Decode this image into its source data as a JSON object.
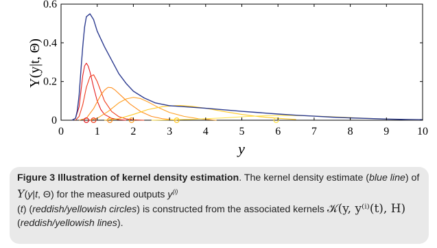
{
  "chart_data": {
    "type": "line",
    "xlabel": "y",
    "ylabel": "Υ(y|t, Θ)",
    "xlim": [
      0,
      10
    ],
    "ylim": [
      0,
      0.6
    ],
    "x_ticks": [
      "0",
      "1",
      "2",
      "3",
      "4",
      "5",
      "6",
      "7",
      "8",
      "9",
      "10"
    ],
    "y_ticks": [
      "0",
      "0.2",
      "0.4",
      "0.6"
    ],
    "colors": {
      "kde": "#2b3a8f",
      "kernel_gradient": [
        "#e41a1c",
        "#ff8c00",
        "#ffd700"
      ]
    },
    "series": [
      {
        "role": "kde",
        "color": "#2b3a8f",
        "x": [
          0.3,
          0.4,
          0.45,
          0.5,
          0.55,
          0.6,
          0.65,
          0.7,
          0.8,
          0.9,
          1.0,
          1.2,
          1.4,
          1.6,
          1.8,
          2.0,
          2.3,
          2.6,
          3.0,
          3.4,
          4.0,
          4.5,
          5.0,
          5.5,
          6.0,
          6.5,
          7.0,
          7.5,
          8.0,
          8.5,
          9.0,
          9.5,
          10.0
        ],
        "y": [
          0.0,
          0.01,
          0.05,
          0.13,
          0.26,
          0.38,
          0.48,
          0.535,
          0.55,
          0.52,
          0.46,
          0.38,
          0.31,
          0.24,
          0.19,
          0.15,
          0.115,
          0.09,
          0.075,
          0.07,
          0.062,
          0.054,
          0.046,
          0.039,
          0.032,
          0.026,
          0.021,
          0.016,
          0.012,
          0.009,
          0.006,
          0.004,
          0.003
        ]
      },
      {
        "role": "kernel",
        "color": "#e41a1c",
        "x": [
          0.3,
          0.4,
          0.5,
          0.55,
          0.6,
          0.65,
          0.7,
          0.75,
          0.8,
          0.9,
          1.0,
          1.1,
          1.2,
          1.4,
          1.6,
          1.8
        ],
        "y": [
          0.0,
          0.01,
          0.07,
          0.15,
          0.23,
          0.28,
          0.295,
          0.28,
          0.25,
          0.17,
          0.1,
          0.055,
          0.03,
          0.01,
          0.003,
          0.0
        ]
      },
      {
        "role": "kernel",
        "color": "#f03a1a",
        "x": [
          0.4,
          0.5,
          0.6,
          0.7,
          0.8,
          0.9,
          1.0,
          1.1,
          1.2,
          1.4,
          1.6,
          1.8,
          2.0,
          2.3
        ],
        "y": [
          0.0,
          0.02,
          0.08,
          0.17,
          0.225,
          0.235,
          0.2,
          0.15,
          0.1,
          0.045,
          0.018,
          0.007,
          0.002,
          0.0
        ]
      },
      {
        "role": "kernel",
        "color": "#ff8c1a",
        "x": [
          0.5,
          0.7,
          0.9,
          1.1,
          1.2,
          1.3,
          1.4,
          1.5,
          1.7,
          1.9,
          2.2,
          2.5,
          2.8,
          3.2
        ],
        "y": [
          0.0,
          0.01,
          0.06,
          0.13,
          0.155,
          0.17,
          0.168,
          0.155,
          0.12,
          0.085,
          0.045,
          0.02,
          0.008,
          0.0
        ]
      },
      {
        "role": "kernel",
        "color": "#ffa020",
        "x": [
          0.8,
          1.0,
          1.3,
          1.6,
          1.8,
          2.0,
          2.2,
          2.4,
          2.7,
          3.0,
          3.4,
          3.8,
          4.3
        ],
        "y": [
          0.0,
          0.01,
          0.045,
          0.09,
          0.11,
          0.118,
          0.112,
          0.095,
          0.065,
          0.04,
          0.02,
          0.008,
          0.0
        ]
      },
      {
        "role": "kernel",
        "color": "#ffc820",
        "x": [
          1.2,
          1.6,
          2.0,
          2.4,
          2.8,
          3.1,
          3.3,
          3.6,
          4.0,
          4.5,
          5.0,
          5.5,
          6.0,
          6.5
        ],
        "y": [
          0.0,
          0.008,
          0.03,
          0.055,
          0.07,
          0.075,
          0.076,
          0.072,
          0.062,
          0.045,
          0.03,
          0.018,
          0.01,
          0.004
        ]
      },
      {
        "role": "kernel",
        "color": "#ffe040",
        "x": [
          2.5,
          3.5,
          4.5,
          5.2,
          5.8,
          6.2,
          6.8,
          7.5,
          8.2,
          9.0,
          9.6,
          10.0
        ],
        "y": [
          0.0,
          0.004,
          0.012,
          0.02,
          0.024,
          0.025,
          0.023,
          0.018,
          0.012,
          0.006,
          0.003,
          0.002
        ]
      }
    ],
    "measured_outputs": [
      {
        "x": 0.7,
        "color": "#e41a1c"
      },
      {
        "x": 0.9,
        "color": "#f03a1a"
      },
      {
        "x": 1.35,
        "color": "#ff8c1a"
      },
      {
        "x": 1.95,
        "color": "#ffa020"
      },
      {
        "x": 3.2,
        "color": "#ffc820"
      },
      {
        "x": 5.95,
        "color": "#ffe040"
      }
    ]
  },
  "caption": {
    "label": "Figure 3 Illustration of kernel density estimation",
    "t1": ". The kernel density estimate (",
    "t2": "blue line",
    "t3": ") of ",
    "m1": "Υ",
    "m2": "(",
    "m3": "y",
    "m4": "|",
    "m5": "t",
    "m6": ", Θ) for the measured outputs ",
    "m7": "y",
    "sup": "(i)",
    "m8": "(",
    "m9": "t",
    "m10": ") (",
    "t4": "reddish/yellowish circles",
    "t5": ") is constructed from the associated kernels ",
    "kernel_math": "𝒦(y, y⁽ⁱ⁾(t), H)",
    "t6": " (",
    "t7": "reddish/yellowish lines",
    "t8": ")."
  }
}
